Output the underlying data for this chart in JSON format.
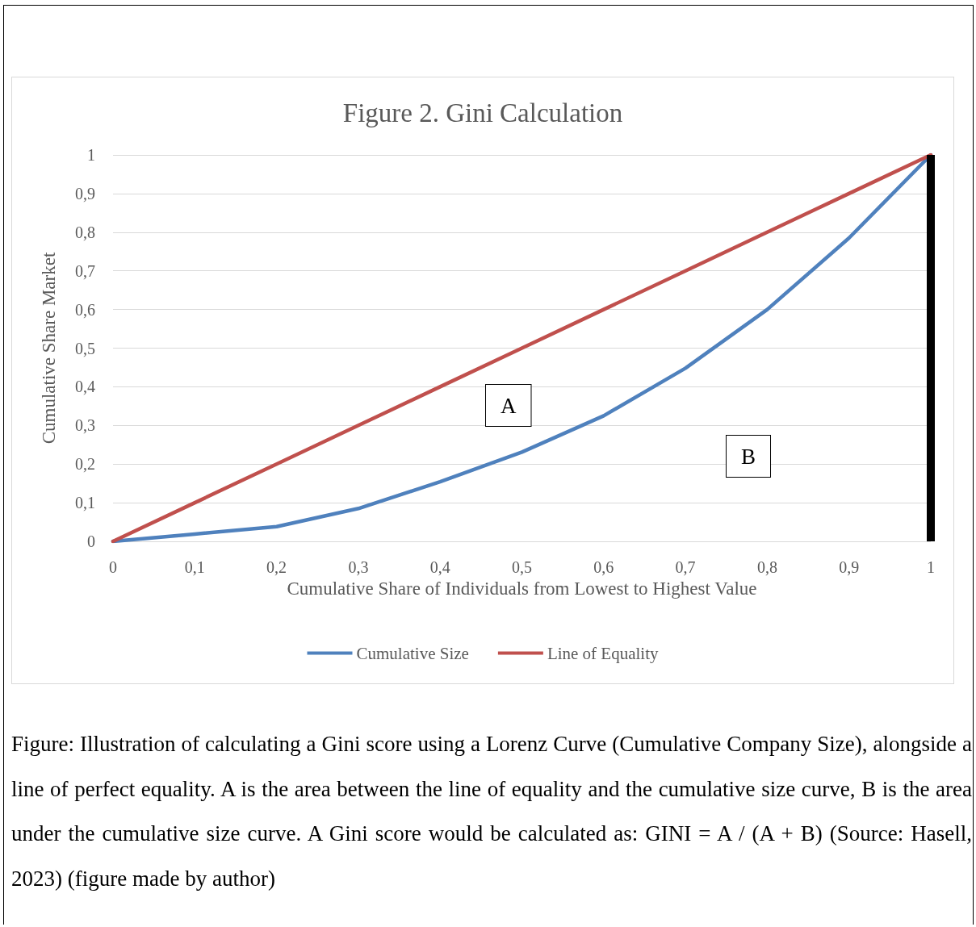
{
  "chart_data": {
    "type": "line",
    "title": "Figure 2. Gini Calculation",
    "xlabel": "Cumulative Share of Individuals from Lowest to Highest Value",
    "ylabel": "Cumulative Share Market",
    "x": [
      0,
      0.1,
      0.2,
      0.3,
      0.4,
      0.5,
      0.6,
      0.7,
      0.8,
      0.9,
      1
    ],
    "series": [
      {
        "name": "Cumulative Size",
        "color": "#4f81bd",
        "values": [
          0,
          0.019,
          0.038,
          0.085,
          0.154,
          0.231,
          0.325,
          0.448,
          0.6,
          0.785,
          1
        ]
      },
      {
        "name": "Line of Equality",
        "color": "#c0504d",
        "values": [
          0,
          0.1,
          0.2,
          0.3,
          0.4,
          0.5,
          0.6,
          0.7,
          0.8,
          0.9,
          1
        ]
      }
    ],
    "ref_lines": [
      {
        "axis": "x",
        "value": 1,
        "color": "#000000"
      }
    ],
    "xlim": [
      0,
      1
    ],
    "xticks": [
      0,
      {
        "value": 0.1,
        "label": "0,1"
      },
      {
        "value": 0.2,
        "label": "0,2"
      },
      {
        "value": 0.3,
        "label": "0,3"
      },
      {
        "value": 0.4,
        "label": "0,4"
      },
      {
        "value": 0.5,
        "label": "0,5"
      },
      {
        "value": 0.6,
        "label": "0,6"
      },
      {
        "value": 0.7,
        "label": "0,7"
      },
      {
        "value": 0.8,
        "label": "0,8"
      },
      {
        "value": 0.9,
        "label": "0,9"
      },
      1
    ],
    "ylim": [
      0,
      1
    ],
    "yticks": [
      0,
      {
        "value": 0.1,
        "label": "0,1"
      },
      {
        "value": 0.2,
        "label": "0,2"
      },
      {
        "value": 0.3,
        "label": "0,3"
      },
      {
        "value": 0.4,
        "label": "0,4"
      },
      {
        "value": 0.5,
        "label": "0,5"
      },
      {
        "value": 0.6,
        "label": "0,6"
      },
      {
        "value": 0.7,
        "label": "0,7"
      },
      {
        "value": 0.8,
        "label": "0,8"
      },
      {
        "value": 0.9,
        "label": "0,9"
      },
      1
    ],
    "grid": "y",
    "legend": "bottom",
    "marker": "none",
    "line_style": "solid",
    "annotations": [
      "A",
      "B",
      "Figure: Illustration of calculating a Gini score using a Lorenz Curve (Cumulative Company Size), alongside a line of perfect equality. A is the area between the line of equality and the cumulative size curve, B is the area under the cumulative size curve. A Gini score would be calculated as:  GINI = A / (A + B) (Source: Hasell, 2023)  (figure made by author)"
    ]
  }
}
